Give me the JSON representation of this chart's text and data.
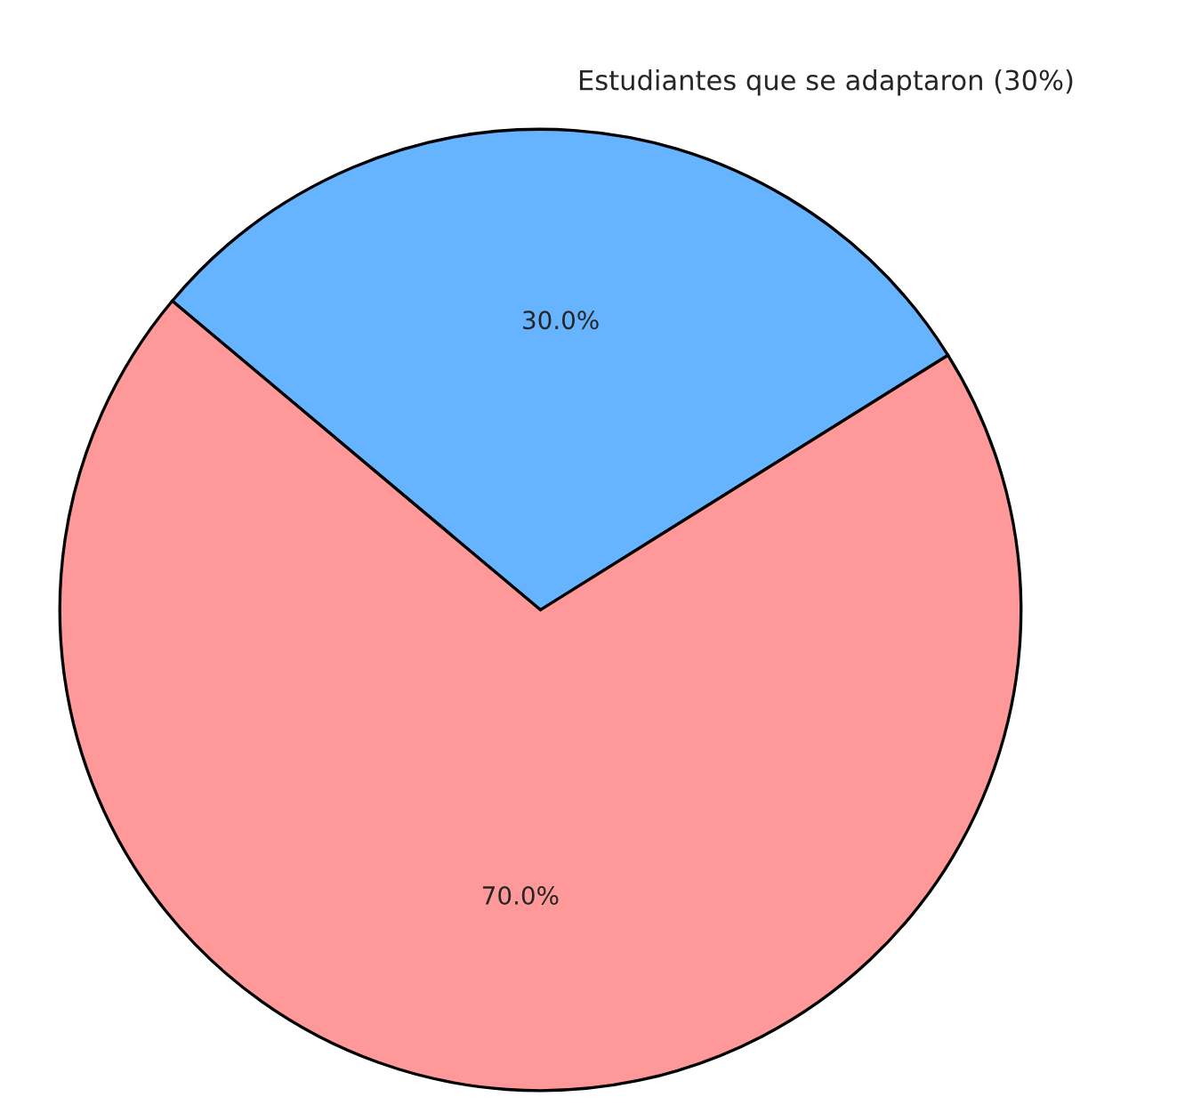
{
  "chart_data": {
    "type": "pie",
    "categories": [
      "Estudiantes que se adaptaron (30%)",
      null
    ],
    "values": [
      30,
      70
    ],
    "colors": [
      "#66b3ff",
      "#ff9999"
    ],
    "value_labels": [
      "30.0%",
      "70.0%"
    ]
  }
}
